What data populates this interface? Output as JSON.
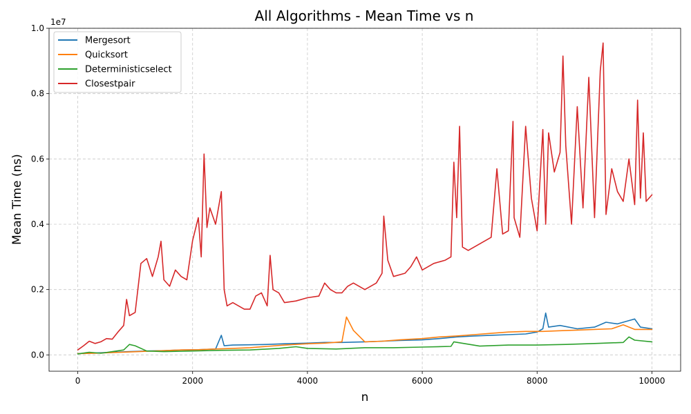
{
  "chart_data": {
    "type": "line",
    "title": "All Algorithms - Mean Time vs n",
    "xlabel": "n",
    "ylabel": "Mean Time (ns)",
    "y_offset_label": "1e7",
    "xlim": [
      -500,
      10500
    ],
    "ylim": [
      -0.05,
      1.0
    ],
    "y_scale": 10000000,
    "xticks": [
      0,
      2000,
      4000,
      6000,
      8000,
      10000
    ],
    "xtick_labels": [
      "0",
      "2000",
      "4000",
      "6000",
      "8000",
      "10000"
    ],
    "yticks": [
      0.0,
      0.2,
      0.4,
      0.6,
      0.8,
      1.0
    ],
    "ytick_labels": [
      "0.0",
      "0.2",
      "0.4",
      "0.6",
      "0.8",
      "1.0"
    ],
    "grid": true,
    "legend_position": "top-left",
    "series": [
      {
        "name": "Mergesort",
        "color": "#1f77b4",
        "x": [
          0,
          300,
          600,
          900,
          1200,
          1500,
          1800,
          2100,
          2400,
          2500,
          2550,
          2700,
          3000,
          3300,
          3600,
          4000,
          4300,
          4600,
          5000,
          5300,
          5600,
          6000,
          6300,
          6600,
          6900,
          7200,
          7500,
          7800,
          8000,
          8100,
          8150,
          8200,
          8400,
          8700,
          9000,
          9200,
          9400,
          9600,
          9700,
          9800,
          10000
        ],
        "y": [
          0.004,
          0.006,
          0.008,
          0.01,
          0.012,
          0.013,
          0.015,
          0.016,
          0.018,
          0.06,
          0.028,
          0.03,
          0.031,
          0.032,
          0.034,
          0.036,
          0.038,
          0.038,
          0.04,
          0.042,
          0.044,
          0.046,
          0.05,
          0.055,
          0.058,
          0.06,
          0.062,
          0.064,
          0.07,
          0.08,
          0.128,
          0.085,
          0.09,
          0.08,
          0.085,
          0.1,
          0.095,
          0.105,
          0.11,
          0.085,
          0.08
        ]
      },
      {
        "name": "Quicksort",
        "color": "#ff7f0e",
        "x": [
          0,
          300,
          600,
          900,
          1200,
          1500,
          1800,
          2100,
          2400,
          2700,
          3000,
          3300,
          3600,
          4000,
          4300,
          4600,
          4680,
          4800,
          5000,
          5300,
          5600,
          6000,
          6300,
          6600,
          6900,
          7200,
          7500,
          7800,
          8100,
          8400,
          8700,
          9000,
          9300,
          9500,
          9700,
          10000
        ],
        "y": [
          0.004,
          0.005,
          0.007,
          0.009,
          0.011,
          0.013,
          0.015,
          0.016,
          0.018,
          0.02,
          0.022,
          0.026,
          0.03,
          0.034,
          0.036,
          0.04,
          0.116,
          0.075,
          0.04,
          0.042,
          0.046,
          0.05,
          0.055,
          0.058,
          0.062,
          0.066,
          0.07,
          0.072,
          0.072,
          0.074,
          0.076,
          0.078,
          0.08,
          0.092,
          0.078,
          0.078
        ]
      },
      {
        "name": "Deterministicselect",
        "color": "#2ca02c",
        "x": [
          0,
          200,
          400,
          800,
          900,
          1000,
          1200,
          1500,
          2000,
          2500,
          3000,
          3500,
          3800,
          4000,
          4500,
          5000,
          5500,
          6000,
          6500,
          6550,
          7000,
          7500,
          8000,
          8500,
          9000,
          9500,
          9600,
          9700,
          10000
        ],
        "y": [
          0.003,
          0.008,
          0.005,
          0.015,
          0.032,
          0.028,
          0.012,
          0.01,
          0.012,
          0.014,
          0.015,
          0.02,
          0.025,
          0.02,
          0.018,
          0.022,
          0.022,
          0.024,
          0.026,
          0.04,
          0.027,
          0.03,
          0.03,
          0.032,
          0.035,
          0.038,
          0.055,
          0.045,
          0.04
        ]
      },
      {
        "name": "Closestpair",
        "color": "#d62728",
        "x": [
          0,
          100,
          200,
          300,
          400,
          500,
          600,
          700,
          800,
          850,
          900,
          1000,
          1100,
          1200,
          1300,
          1400,
          1450,
          1500,
          1600,
          1700,
          1800,
          1900,
          2000,
          2100,
          2150,
          2200,
          2250,
          2300,
          2400,
          2500,
          2550,
          2600,
          2700,
          2800,
          2900,
          3000,
          3100,
          3200,
          3300,
          3350,
          3400,
          3500,
          3600,
          3800,
          4000,
          4200,
          4300,
          4400,
          4500,
          4600,
          4700,
          4800,
          5000,
          5200,
          5300,
          5330,
          5400,
          5500,
          5700,
          5800,
          5900,
          6000,
          6200,
          6400,
          6500,
          6550,
          6600,
          6650,
          6700,
          6800,
          7000,
          7200,
          7300,
          7400,
          7500,
          7580,
          7600,
          7700,
          7800,
          7900,
          8000,
          8100,
          8150,
          8200,
          8300,
          8400,
          8450,
          8500,
          8600,
          8700,
          8800,
          8900,
          9000,
          9100,
          9150,
          9200,
          9300,
          9400,
          9500,
          9600,
          9700,
          9750,
          9800,
          9850,
          9900,
          10000
        ],
        "y": [
          0.015,
          0.028,
          0.042,
          0.035,
          0.04,
          0.05,
          0.048,
          0.07,
          0.09,
          0.17,
          0.12,
          0.13,
          0.28,
          0.295,
          0.24,
          0.3,
          0.348,
          0.23,
          0.21,
          0.26,
          0.24,
          0.23,
          0.35,
          0.42,
          0.3,
          0.615,
          0.39,
          0.45,
          0.4,
          0.5,
          0.2,
          0.15,
          0.16,
          0.15,
          0.14,
          0.14,
          0.18,
          0.19,
          0.15,
          0.305,
          0.2,
          0.19,
          0.16,
          0.165,
          0.175,
          0.18,
          0.22,
          0.2,
          0.19,
          0.19,
          0.21,
          0.22,
          0.2,
          0.22,
          0.25,
          0.425,
          0.29,
          0.24,
          0.25,
          0.27,
          0.3,
          0.26,
          0.28,
          0.29,
          0.3,
          0.59,
          0.42,
          0.7,
          0.33,
          0.32,
          0.34,
          0.36,
          0.57,
          0.37,
          0.38,
          0.715,
          0.42,
          0.36,
          0.7,
          0.48,
          0.38,
          0.69,
          0.4,
          0.68,
          0.56,
          0.62,
          0.915,
          0.64,
          0.4,
          0.76,
          0.45,
          0.85,
          0.42,
          0.87,
          0.955,
          0.43,
          0.57,
          0.5,
          0.47,
          0.6,
          0.46,
          0.78,
          0.48,
          0.68,
          0.47,
          0.49
        ]
      }
    ]
  }
}
